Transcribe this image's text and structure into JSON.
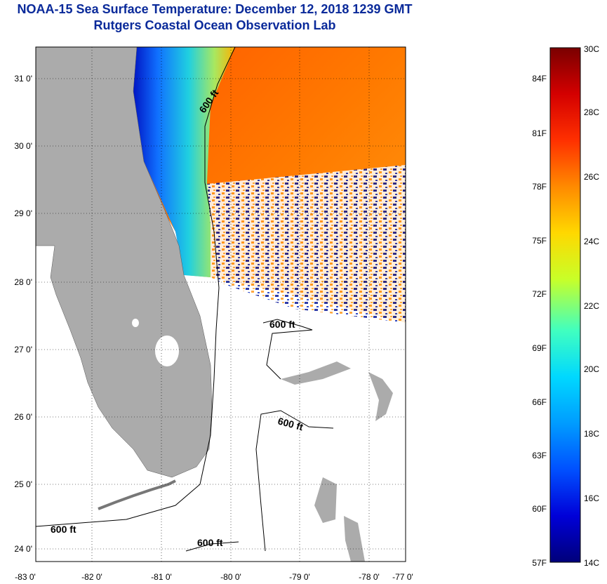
{
  "header": {
    "title": "NOAA-15 Sea Surface Temperature:  December 12, 2018 1239 GMT",
    "subtitle": "Rutgers Coastal Ocean Observation Lab"
  },
  "map": {
    "lat_labels": [
      "31 0'",
      "30 0'",
      "29 0'",
      "28 0'",
      "27 0'",
      "26 0'",
      "25 0'",
      "24 0'"
    ],
    "lon_labels": [
      "-83 0'",
      "-82 0'",
      "-81 0'",
      "-80 0'",
      "-79 0'",
      "-78 0'",
      "-77 0'"
    ],
    "contour_labels": [
      "600 ft",
      "600 ft",
      "600 ft",
      "600 ft",
      "600 ft"
    ]
  },
  "colorbar": {
    "celsius_labels": [
      "30C",
      "28C",
      "26C",
      "24C",
      "22C",
      "20C",
      "18C",
      "16C",
      "14C"
    ],
    "fahrenheit_labels": [
      "84F",
      "81F",
      "78F",
      "75F",
      "72F",
      "69F",
      "66F",
      "63F",
      "60F",
      "57F"
    ],
    "colors": [
      "#7a0000",
      "#d40000",
      "#ff3000",
      "#ff8a00",
      "#ffd800",
      "#c8ff28",
      "#40ffc0",
      "#00d8ff",
      "#009cff",
      "#0050ff",
      "#0000d8",
      "#00007a"
    ]
  }
}
